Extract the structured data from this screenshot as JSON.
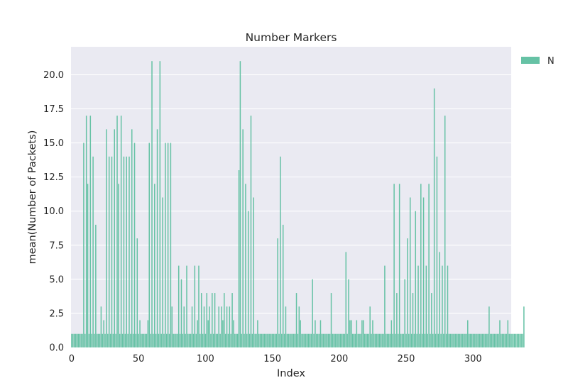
{
  "chart_data": {
    "type": "bar",
    "title": "Number Markers",
    "xlabel": "Index",
    "ylabel": "mean(Number of Packets)",
    "xlim": [
      -0.5,
      328.5
    ],
    "ylim": [
      0,
      22.05
    ],
    "xticks": [
      0,
      50,
      100,
      150,
      200,
      250,
      300
    ],
    "xtick_labels": [
      "0",
      "50",
      "100",
      "150",
      "200",
      "250",
      "300"
    ],
    "yticks": [
      0,
      2.5,
      5,
      7.5,
      10,
      12.5,
      15,
      17.5,
      20
    ],
    "ytick_labels": [
      "0.0",
      "2.5",
      "5.0",
      "7.5",
      "10.0",
      "12.5",
      "15.0",
      "17.5",
      "20.0"
    ],
    "grid": true,
    "legend": {
      "position": "outside-right",
      "entries": [
        "N"
      ]
    },
    "colors": {
      "bar": "#66c2a5",
      "background": "#eaeaf2",
      "grid": "#ffffff",
      "text": "#262626"
    },
    "series": [
      {
        "name": "N",
        "values": [
          1,
          1,
          1,
          1,
          1,
          1,
          1,
          1,
          1,
          15,
          1,
          17,
          12,
          1,
          17,
          1,
          14,
          1,
          9,
          1,
          1,
          1,
          3,
          1,
          2,
          1,
          16,
          1,
          14,
          1,
          14,
          1,
          16,
          1,
          17,
          12,
          1,
          17,
          1,
          14,
          1,
          14,
          1,
          14,
          1,
          16,
          1,
          15,
          1,
          8,
          1,
          2,
          1,
          1,
          1,
          1,
          1,
          2,
          15,
          1,
          21,
          1,
          12,
          1,
          16,
          1,
          21,
          1,
          11,
          1,
          15,
          1,
          15,
          1,
          15,
          3,
          1,
          1,
          1,
          1,
          6,
          1,
          5,
          1,
          3,
          1,
          6,
          1,
          1,
          1,
          3,
          1,
          6,
          1,
          2,
          6,
          1,
          4,
          1,
          3,
          1,
          4,
          2,
          3,
          1,
          4,
          1,
          4,
          1,
          1,
          3,
          1,
          3,
          2,
          4,
          1,
          3,
          1,
          3,
          1,
          4,
          2,
          1,
          1,
          1,
          13,
          21,
          1,
          16,
          1,
          12,
          1,
          10,
          1,
          17,
          1,
          11,
          1,
          1,
          2,
          1,
          1,
          1,
          1,
          1,
          1,
          1,
          1,
          1,
          1,
          1,
          1,
          1,
          1,
          8,
          1,
          14,
          1,
          9,
          1,
          3,
          1,
          1,
          1,
          1,
          1,
          1,
          1,
          4,
          1,
          3,
          2,
          1,
          1,
          1,
          1,
          1,
          1,
          1,
          1,
          5,
          1,
          2,
          1,
          1,
          1,
          2,
          1,
          1,
          1,
          1,
          1,
          1,
          1,
          4,
          1,
          1,
          1,
          1,
          1,
          1,
          1,
          1,
          1,
          1,
          7,
          1,
          5,
          2,
          2,
          1,
          1,
          1,
          2,
          1,
          1,
          1,
          2,
          2,
          1,
          1,
          1,
          1,
          3,
          1,
          2,
          1,
          1,
          1,
          1,
          1,
          1,
          1,
          1,
          6,
          1,
          1,
          1,
          1,
          2,
          1,
          12,
          1,
          4,
          1,
          12,
          1,
          1,
          1,
          5,
          1,
          8,
          1,
          11,
          1,
          4,
          1,
          10,
          1,
          6,
          1,
          12,
          1,
          11,
          1,
          6,
          1,
          12,
          1,
          4,
          1,
          19,
          1,
          14,
          1,
          7,
          1,
          6,
          1,
          17,
          1,
          6,
          1,
          1,
          1,
          1,
          1,
          1,
          1,
          1,
          1,
          1,
          1,
          1,
          1,
          1,
          2,
          1,
          1,
          1,
          1,
          1,
          1,
          1,
          1,
          1,
          1,
          1,
          1,
          1,
          1,
          1,
          3,
          1,
          1,
          1,
          1,
          1,
          1,
          1,
          2,
          1,
          1,
          1,
          1,
          1,
          2,
          1,
          1,
          1,
          1,
          1,
          1,
          1,
          1,
          1,
          1,
          1,
          3
        ]
      }
    ]
  }
}
